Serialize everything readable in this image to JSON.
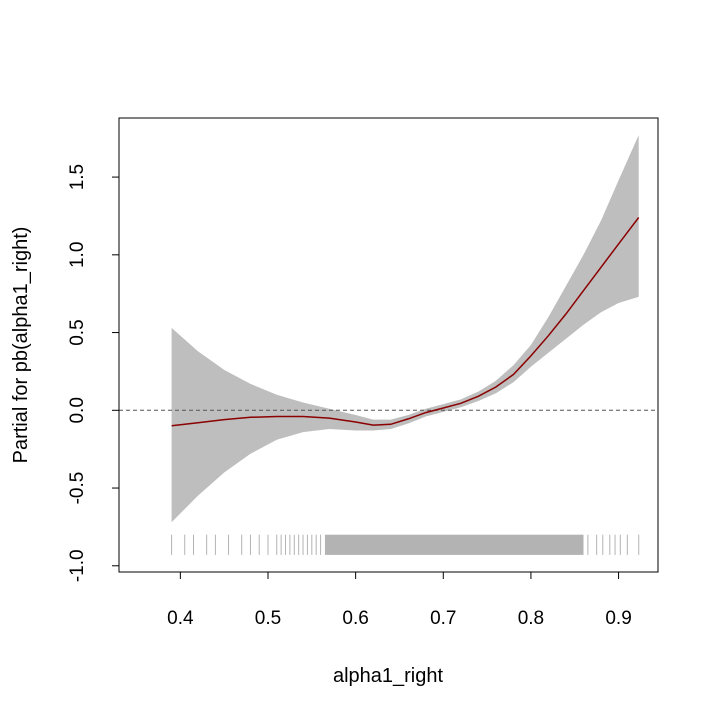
{
  "chart_data": {
    "type": "line",
    "title": "",
    "xlabel": "alpha1_right",
    "ylabel": "Partial for pb(alpha1_right)",
    "xlim": [
      0.33,
      0.945
    ],
    "ylim": [
      -1.04,
      1.88
    ],
    "x_ticks": [
      0.4,
      0.5,
      0.6,
      0.7,
      0.8,
      0.9
    ],
    "y_ticks": [
      -1.0,
      -0.5,
      0.0,
      0.5,
      1.0,
      1.5
    ],
    "x_tick_labels": [
      "0.4",
      "0.5",
      "0.6",
      "0.7",
      "0.8",
      "0.9"
    ],
    "y_tick_labels": [
      "-1.0",
      "-0.5",
      "0.0",
      "0.5",
      "1.0",
      "1.5"
    ],
    "reference_line_y": 0.0,
    "grid": false,
    "colors": {
      "fit_line": "#8b0000",
      "band": "#bebebe",
      "rug": "#b3b3b3",
      "reference": "#555555",
      "axis": "#000000"
    },
    "series": [
      {
        "x": [
          0.39,
          0.42,
          0.45,
          0.48,
          0.51,
          0.54,
          0.57,
          0.6,
          0.62,
          0.64,
          0.66,
          0.68,
          0.7,
          0.72,
          0.74,
          0.76,
          0.78,
          0.8,
          0.82,
          0.84,
          0.86,
          0.88,
          0.9,
          0.923
        ],
        "fit": [
          -0.1,
          -0.08,
          -0.06,
          -0.045,
          -0.04,
          -0.04,
          -0.05,
          -0.075,
          -0.095,
          -0.09,
          -0.055,
          -0.015,
          0.015,
          0.045,
          0.09,
          0.15,
          0.23,
          0.35,
          0.48,
          0.62,
          0.77,
          0.92,
          1.07,
          1.24
        ],
        "lower": [
          -0.72,
          -0.55,
          -0.4,
          -0.28,
          -0.19,
          -0.14,
          -0.12,
          -0.13,
          -0.13,
          -0.12,
          -0.085,
          -0.04,
          -0.01,
          0.02,
          0.06,
          0.11,
          0.18,
          0.28,
          0.37,
          0.46,
          0.55,
          0.63,
          0.69,
          0.73
        ],
        "upper": [
          0.53,
          0.38,
          0.26,
          0.17,
          0.1,
          0.05,
          0.01,
          -0.03,
          -0.06,
          -0.06,
          -0.03,
          0.01,
          0.04,
          0.07,
          0.12,
          0.19,
          0.29,
          0.42,
          0.6,
          0.8,
          1.0,
          1.22,
          1.48,
          1.77
        ]
      }
    ],
    "rug": {
      "y_top": -0.8,
      "y_bottom": -0.93,
      "x": [
        0.39,
        0.405,
        0.415,
        0.43,
        0.44,
        0.455,
        0.47,
        0.48,
        0.49,
        0.5,
        0.51,
        0.515,
        0.52,
        0.525,
        0.53,
        0.535,
        0.54,
        0.545,
        0.55,
        0.555,
        0.56,
        0.865,
        0.875,
        0.882,
        0.89,
        0.896,
        0.902,
        0.91,
        0.923
      ],
      "dense_range": [
        0.565,
        0.86
      ]
    }
  }
}
